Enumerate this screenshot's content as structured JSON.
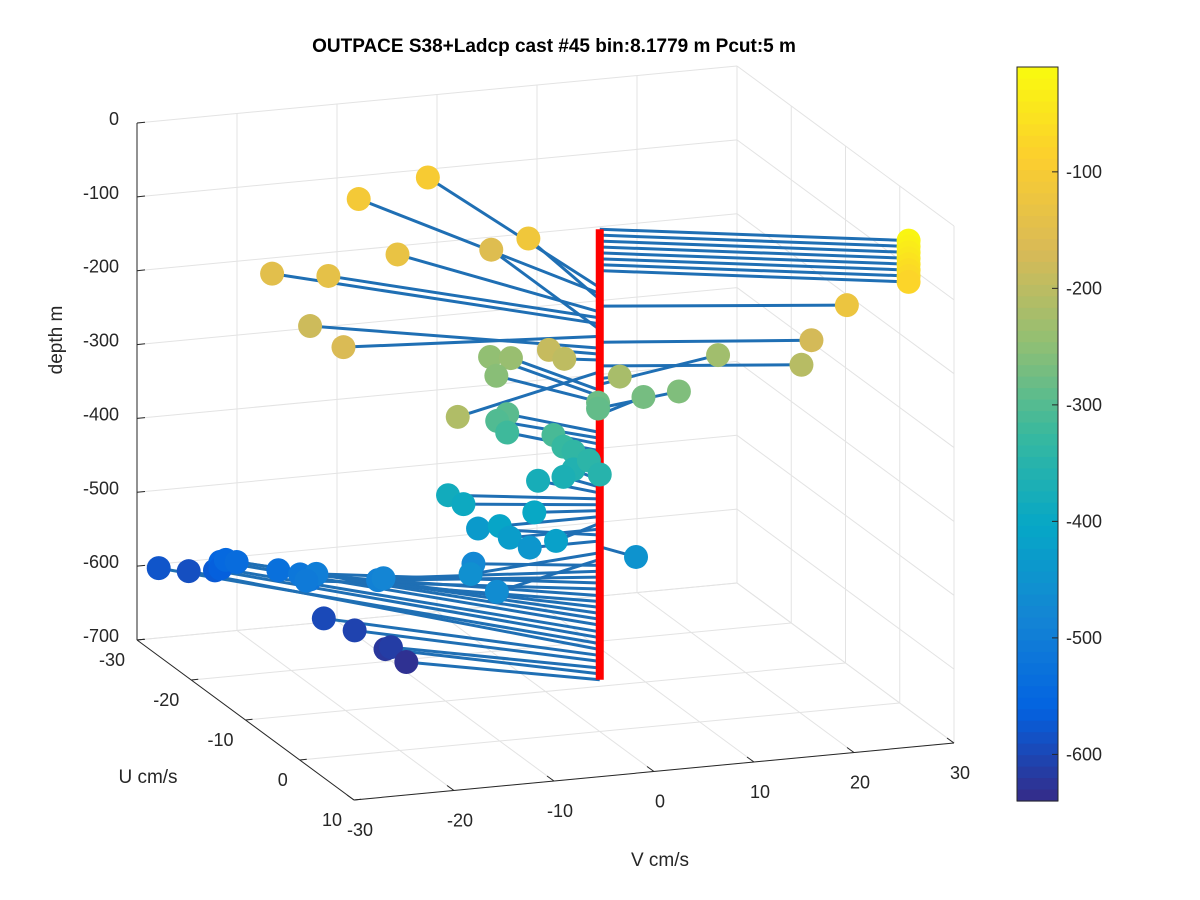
{
  "chart_data": {
    "type": "scatter",
    "title": "OUTPACE S38+Ladcp cast #45 bin:8.1779 m  Pcut:5 m",
    "xlabel": "U cm/s",
    "ylabel": "V cm/s",
    "zlabel": "depth m",
    "xlim": [
      -30,
      10
    ],
    "ylim": [
      -30,
      30
    ],
    "zlim": [
      -700,
      0
    ],
    "x_ticks": [
      "-30",
      "-20",
      "-10",
      "0",
      "10"
    ],
    "y_ticks": [
      "-30",
      "-20",
      "-10",
      "0",
      "10",
      "20",
      "30"
    ],
    "z_ticks": [
      "0",
      "-100",
      "-200",
      "-300",
      "-400",
      "-500",
      "-600",
      "-700"
    ],
    "grid": true,
    "colorbar": {
      "range": [
        -640,
        -10
      ],
      "ticks": [
        "-100",
        "-200",
        "-300",
        "-400",
        "-500",
        "-600"
      ],
      "colormap": "parula"
    },
    "profile_line_color": "#ff0000",
    "stick_color": "#1f6fb4",
    "points": [
      {
        "depth": -20,
        "u": 9,
        "v": 26
      },
      {
        "depth": -28,
        "u": 9,
        "v": 26
      },
      {
        "depth": -36,
        "u": 9,
        "v": 26
      },
      {
        "depth": -44,
        "u": 9,
        "v": 26
      },
      {
        "depth": -52,
        "u": 9,
        "v": 26
      },
      {
        "depth": -60,
        "u": 9,
        "v": 26
      },
      {
        "depth": -68,
        "u": 9,
        "v": 26
      },
      {
        "depth": -76,
        "u": 9,
        "v": 26
      },
      {
        "depth": -99,
        "u": -28,
        "v": -2
      },
      {
        "depth": -107,
        "u": -26,
        "v": -10
      },
      {
        "depth": -115,
        "u": -15,
        "v": 1
      },
      {
        "depth": -124,
        "u": 5,
        "v": 22
      },
      {
        "depth": -132,
        "u": -17,
        "v": -11
      },
      {
        "depth": -140,
        "u": -15,
        "v": -19
      },
      {
        "depth": -148,
        "u": -18,
        "v": -23
      },
      {
        "depth": -156,
        "u": -20,
        "v": 0
      },
      {
        "depth": -165,
        "u": -3,
        "v": -24
      },
      {
        "depth": -173,
        "u": 4,
        "v": 19
      },
      {
        "depth": -181,
        "u": -11,
        "v": -23
      },
      {
        "depth": -189,
        "u": -2,
        "v": -4
      },
      {
        "depth": -197,
        "u": -1,
        "v": -3
      },
      {
        "depth": -205,
        "u": 4,
        "v": 18
      },
      {
        "depth": -213,
        "u": 7,
        "v": -18
      },
      {
        "depth": -222,
        "u": 0,
        "v": 2
      },
      {
        "depth": -230,
        "u": -4,
        "v": 14
      },
      {
        "depth": -238,
        "u": -9,
        "v": -4
      },
      {
        "depth": -246,
        "u": -11,
        "v": -5
      },
      {
        "depth": -254,
        "u": -8,
        "v": -6
      },
      {
        "depth": -262,
        "u": -2,
        "v": 9
      },
      {
        "depth": -271,
        "u": -3,
        "v": 6
      },
      {
        "depth": -279,
        "u": -4,
        "v": 2
      },
      {
        "depth": -287,
        "u": -4,
        "v": 2
      },
      {
        "depth": -295,
        "u": -6,
        "v": -6
      },
      {
        "depth": -303,
        "u": -6,
        "v": -7
      },
      {
        "depth": -311,
        "u": -3,
        "v": -3
      },
      {
        "depth": -320,
        "u": -6,
        "v": -6
      },
      {
        "depth": -328,
        "u": -3,
        "v": -2
      },
      {
        "depth": -336,
        "u": -3,
        "v": -1
      },
      {
        "depth": -344,
        "u": -2,
        "v": 0
      },
      {
        "depth": -352,
        "u": 0,
        "v": 0
      },
      {
        "depth": -360,
        "u": -3,
        "v": -1
      },
      {
        "depth": -369,
        "u": -3,
        "v": -2
      },
      {
        "depth": -377,
        "u": -4,
        "v": -4
      },
      {
        "depth": -385,
        "u": -4,
        "v": -13
      },
      {
        "depth": -393,
        "u": -3,
        "v": -12
      },
      {
        "depth": -401,
        "u": -1,
        "v": -6
      },
      {
        "depth": -409,
        "u": 0,
        "v": -10
      },
      {
        "depth": -418,
        "u": 3,
        "v": -6
      },
      {
        "depth": -426,
        "u": 0,
        "v": -9
      },
      {
        "depth": -434,
        "u": -4,
        "v": -10
      },
      {
        "depth": -442,
        "u": 0,
        "v": -7
      },
      {
        "depth": -450,
        "u": 3,
        "v": 2
      },
      {
        "depth": -458,
        "u": 2,
        "v": -14
      },
      {
        "depth": -467,
        "u": 5,
        "v": -13
      },
      {
        "depth": -475,
        "u": -3,
        "v": -11
      },
      {
        "depth": -483,
        "u": -3,
        "v": -20
      },
      {
        "depth": -491,
        "u": -4,
        "v": -20
      },
      {
        "depth": -499,
        "u": -8,
        "v": -24
      },
      {
        "depth": -507,
        "u": -8,
        "v": -25
      },
      {
        "depth": -516,
        "u": -11,
        "v": -24
      },
      {
        "depth": -524,
        "u": -11,
        "v": -23
      },
      {
        "depth": -532,
        "u": -15,
        "v": -24
      },
      {
        "depth": -540,
        "u": -19,
        "v": -26
      },
      {
        "depth": -548,
        "u": -21,
        "v": -26
      },
      {
        "depth": -556,
        "u": -22,
        "v": -26
      },
      {
        "depth": -565,
        "u": -22,
        "v": -26
      },
      {
        "depth": -573,
        "u": -23,
        "v": -26
      },
      {
        "depth": -581,
        "u": -26,
        "v": -30
      },
      {
        "depth": -589,
        "u": -26,
        "v": -27
      },
      {
        "depth": -597,
        "u": -14,
        "v": -20
      },
      {
        "depth": -605,
        "u": -12,
        "v": -18
      },
      {
        "depth": -614,
        "u": -9,
        "v": -16
      },
      {
        "depth": -622,
        "u": -10,
        "v": -16
      },
      {
        "depth": -630,
        "u": -8,
        "v": -15
      }
    ]
  }
}
